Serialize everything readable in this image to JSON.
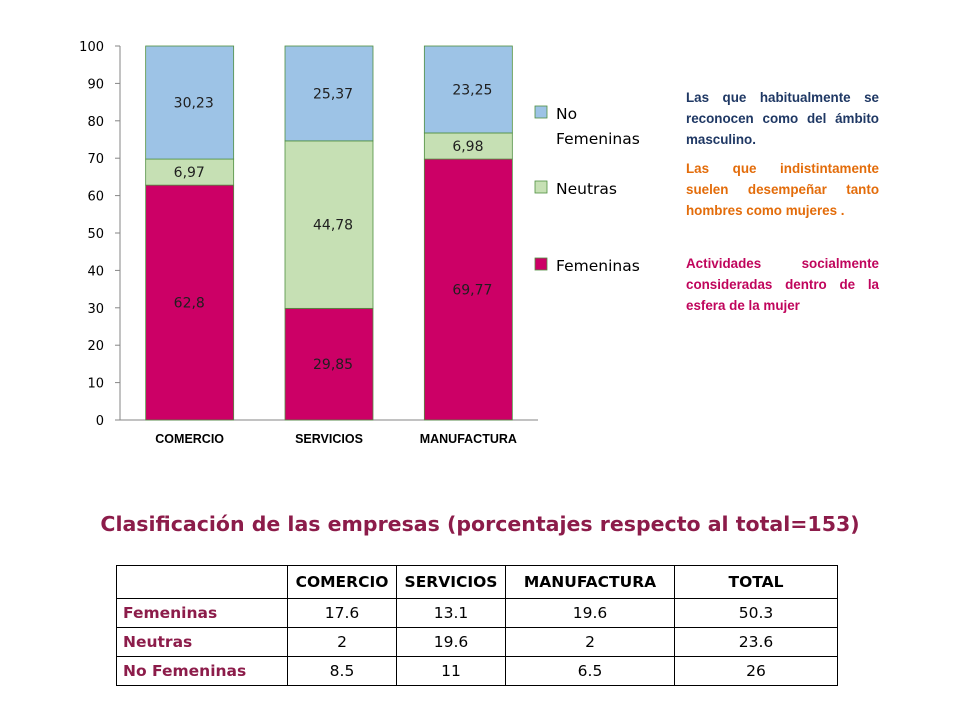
{
  "chart_data": {
    "type": "bar",
    "stacked": true,
    "categories": [
      "COMERCIO",
      "SERVICIOS",
      "MANUFACTURA"
    ],
    "series": [
      {
        "name": "Femeninas",
        "values": [
          62.8,
          29.85,
          69.77
        ],
        "labels": [
          "62,8",
          "29,85",
          "69,77"
        ],
        "color": "#cc0066"
      },
      {
        "name": "Neutras",
        "values": [
          6.97,
          44.78,
          6.98
        ],
        "labels": [
          "6,97",
          "44,78",
          "6,98"
        ],
        "color": "#c6e0b4"
      },
      {
        "name": "No Femeninas",
        "values": [
          30.23,
          25.37,
          23.25
        ],
        "labels": [
          "30,23",
          "25,37",
          "23,25"
        ],
        "color": "#9dc3e6"
      }
    ],
    "ylim": [
      0,
      100
    ],
    "yticks": [
      "0",
      "10",
      "20",
      "30",
      "40",
      "50",
      "60",
      "70",
      "80",
      "90",
      "100"
    ],
    "legend": {
      "placement": "right",
      "items": [
        {
          "line1": "No",
          "line2": "Femeninas",
          "color": "#9dc3e6"
        },
        {
          "line1": "Neutras",
          "line2": "",
          "color": "#c6e0b4"
        },
        {
          "line1": "Femeninas",
          "line2": "",
          "color": "#cc0066"
        }
      ]
    },
    "grid": false,
    "xlabel": "",
    "ylabel": "",
    "title": ""
  },
  "notes": {
    "no_femeninas": "Las que habitualmente se reconocen como del ámbito masculino.",
    "neutras": "Las que indistintamente suelen desempeñar tanto hombres como mujeres .",
    "femeninas": "Actividades socialmente consideradas dentro de la esfera de la mujer"
  },
  "table": {
    "title": "Clasificación de las empresas (porcentajes respecto al total=153)",
    "headers": [
      "",
      "COMERCIO",
      "SERVICIOS",
      "MANUFACTURA",
      "TOTAL"
    ],
    "rows": [
      {
        "label": "Femeninas",
        "cells": [
          "17.6",
          "13.1",
          "19.6",
          "50.3"
        ]
      },
      {
        "label": "Neutras",
        "cells": [
          "2",
          "19.6",
          "2",
          "23.6"
        ]
      },
      {
        "label": "No Femeninas",
        "cells": [
          "8.5",
          "11",
          "6.5",
          "26"
        ]
      }
    ]
  },
  "colors": {
    "note_blue": "#1f3864",
    "note_orange": "#e36c0a",
    "note_magenta": "#c0055c",
    "title": "#8c1c4a"
  }
}
